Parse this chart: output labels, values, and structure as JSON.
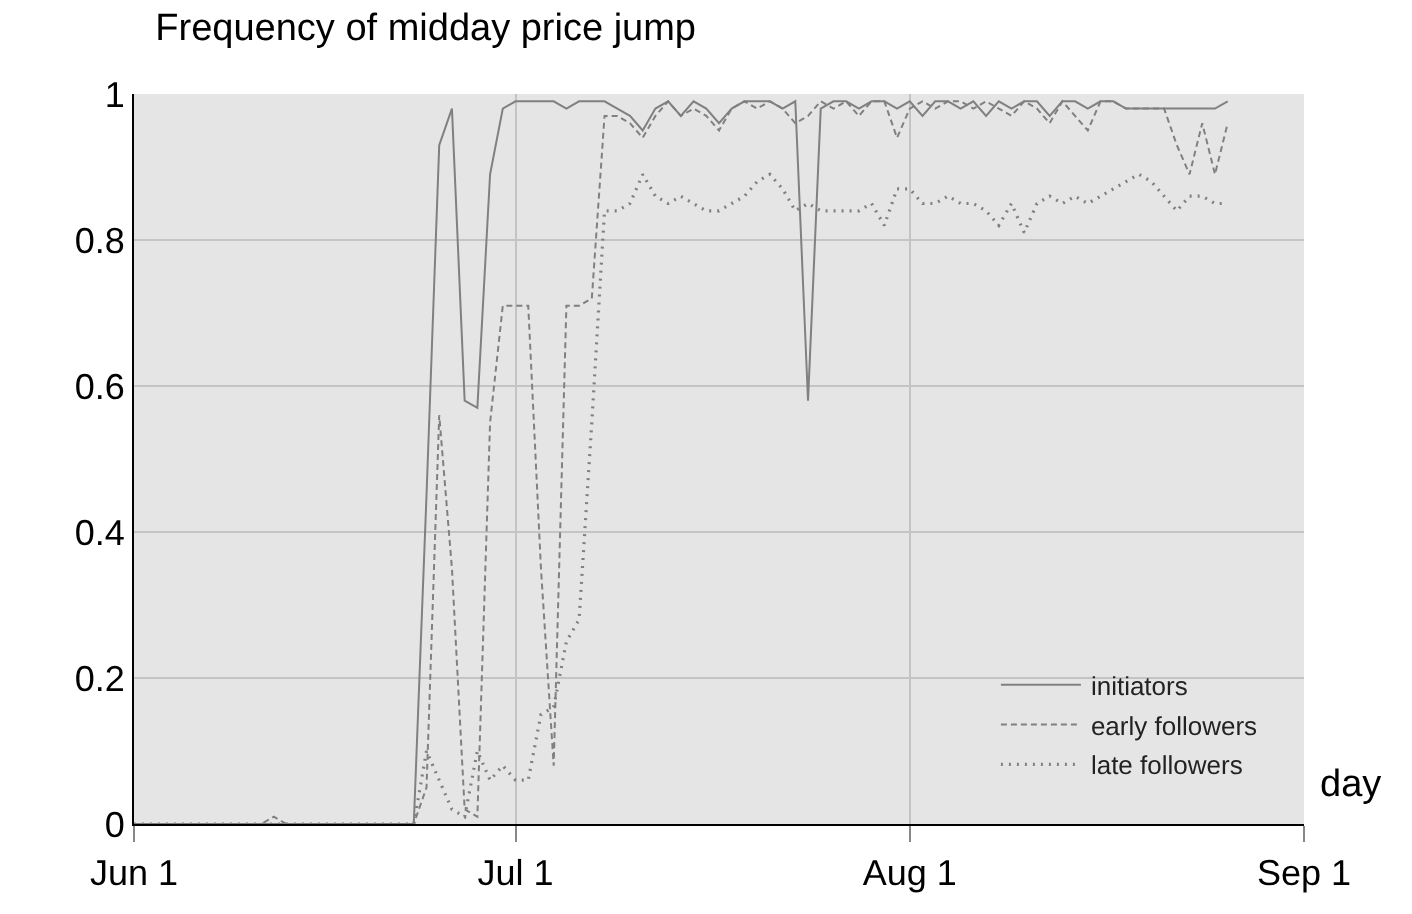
{
  "chart_data": {
    "type": "line",
    "title": "Frequency of midday price jump",
    "xlabel": "day",
    "x": [
      "--06-01",
      "--06-02",
      "--06-03",
      "--06-04",
      "--06-05",
      "--06-06",
      "--06-07",
      "--06-08",
      "--06-09",
      "--06-10",
      "--06-11",
      "--06-12",
      "--06-13",
      "--06-14",
      "--06-15",
      "--06-16",
      "--06-17",
      "--06-18",
      "--06-19",
      "--06-20",
      "--06-21",
      "--06-22",
      "--06-23",
      "--06-24",
      "--06-25",
      "--06-26",
      "--06-27",
      "--06-28",
      "--06-29",
      "--06-30",
      "--07-01",
      "--07-02",
      "--07-03",
      "--07-04",
      "--07-05",
      "--07-06",
      "--07-07",
      "--07-08",
      "--07-09",
      "--07-10",
      "--07-11",
      "--07-12",
      "--07-13",
      "--07-14",
      "--07-15",
      "--07-16",
      "--07-17",
      "--07-18",
      "--07-19",
      "--07-20",
      "--07-21",
      "--07-22",
      "--07-23",
      "--07-24",
      "--07-25",
      "--07-26",
      "--07-27",
      "--07-28",
      "--07-29",
      "--07-30",
      "--07-31",
      "--08-01",
      "--08-02",
      "--08-03",
      "--08-04",
      "--08-05",
      "--08-06",
      "--08-07",
      "--08-08",
      "--08-09",
      "--08-10",
      "--08-11",
      "--08-12",
      "--08-13",
      "--08-14",
      "--08-15",
      "--08-16",
      "--08-17",
      "--08-18",
      "--08-19",
      "--08-20",
      "--08-21",
      "--08-22",
      "--08-23",
      "--08-24",
      "--08-25",
      "--08-26"
    ],
    "series": [
      {
        "name": "initiators",
        "color": "#808080",
        "line_style": "solid",
        "values": [
          0,
          0,
          0,
          0,
          0,
          0,
          0,
          0,
          0,
          0,
          0,
          0,
          0,
          0,
          0,
          0,
          0,
          0,
          0,
          0,
          0,
          0,
          0,
          0.45,
          0.93,
          0.98,
          0.58,
          0.57,
          0.89,
          0.98,
          0.99,
          0.99,
          0.99,
          0.99,
          0.98,
          0.99,
          0.99,
          0.99,
          0.98,
          0.97,
          0.95,
          0.98,
          0.99,
          0.97,
          0.99,
          0.98,
          0.96,
          0.98,
          0.99,
          0.99,
          0.99,
          0.98,
          0.99,
          0.58,
          0.98,
          0.99,
          0.99,
          0.98,
          0.99,
          0.99,
          0.98,
          0.99,
          0.97,
          0.99,
          0.99,
          0.98,
          0.99,
          0.97,
          0.99,
          0.98,
          0.99,
          0.99,
          0.97,
          0.99,
          0.99,
          0.98,
          0.99,
          0.99,
          0.98,
          0.98,
          0.98,
          0.98,
          0.98,
          0.98,
          0.98,
          0.98,
          0.99
        ]
      },
      {
        "name": "early followers",
        "color": "#808080",
        "line_style": "dashed",
        "values": [
          0,
          0,
          0,
          0,
          0,
          0,
          0,
          0,
          0,
          0,
          0,
          0.01,
          0,
          0,
          0,
          0,
          0,
          0,
          0,
          0,
          0,
          0,
          0,
          0.05,
          0.56,
          0.35,
          0.02,
          0.01,
          0.55,
          0.71,
          0.71,
          0.71,
          0.35,
          0.08,
          0.71,
          0.71,
          0.72,
          0.97,
          0.97,
          0.96,
          0.94,
          0.97,
          0.99,
          0.97,
          0.98,
          0.97,
          0.95,
          0.98,
          0.99,
          0.98,
          0.99,
          0.98,
          0.96,
          0.97,
          0.99,
          0.98,
          0.99,
          0.97,
          0.99,
          0.99,
          0.94,
          0.98,
          0.99,
          0.98,
          0.99,
          0.99,
          0.98,
          0.99,
          0.98,
          0.97,
          0.99,
          0.98,
          0.96,
          0.99,
          0.97,
          0.95,
          0.99,
          0.99,
          0.98,
          0.98,
          0.98,
          0.98,
          0.93,
          0.89,
          0.96,
          0.89,
          0.96
        ]
      },
      {
        "name": "late followers",
        "color": "#808080",
        "line_style": "dotted",
        "values": [
          0,
          0,
          0,
          0,
          0,
          0,
          0,
          0,
          0,
          0,
          0,
          0,
          0,
          0,
          0,
          0,
          0,
          0,
          0,
          0,
          0,
          0,
          0,
          0.1,
          0.06,
          0.02,
          0.01,
          0.1,
          0.06,
          0.08,
          0.06,
          0.06,
          0.15,
          0.16,
          0.25,
          0.28,
          0.55,
          0.84,
          0.84,
          0.85,
          0.89,
          0.86,
          0.85,
          0.86,
          0.85,
          0.84,
          0.84,
          0.85,
          0.86,
          0.88,
          0.89,
          0.87,
          0.84,
          0.85,
          0.84,
          0.84,
          0.84,
          0.84,
          0.85,
          0.82,
          0.87,
          0.87,
          0.85,
          0.85,
          0.86,
          0.85,
          0.85,
          0.84,
          0.82,
          0.85,
          0.81,
          0.85,
          0.86,
          0.85,
          0.86,
          0.85,
          0.86,
          0.87,
          0.88,
          0.89,
          0.88,
          0.86,
          0.84,
          0.86,
          0.86,
          0.85,
          0.85
        ]
      }
    ],
    "xlim": [
      "--06-01",
      "--09-01"
    ],
    "xticks": [
      {
        "value": "--06-01",
        "label": "Jun 1"
      },
      {
        "value": "--07-01",
        "label": "Jul 1"
      },
      {
        "value": "--08-01",
        "label": "Aug 1"
      },
      {
        "value": "--09-01",
        "label": "Sep 1"
      }
    ],
    "ylim": [
      0,
      1
    ],
    "yticks": [
      0,
      0.2,
      0.4,
      0.6,
      0.8,
      1
    ],
    "grid": true,
    "legend": "bottom right",
    "marker": "none"
  }
}
